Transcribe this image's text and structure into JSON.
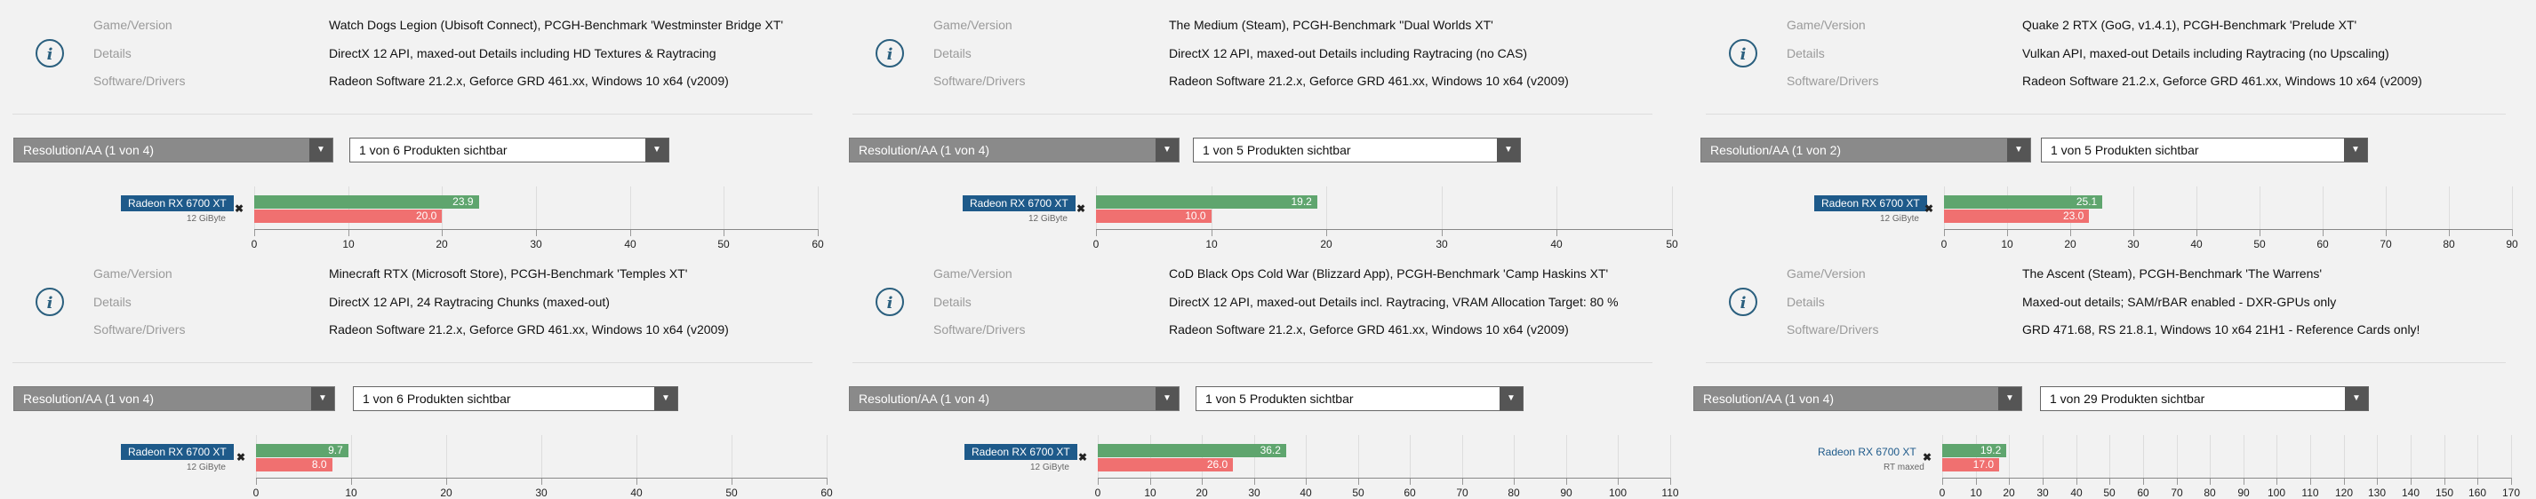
{
  "colors": {
    "avg": "#5fa56e",
    "low": "#f07070",
    "badge": "#1e5a8a",
    "icon": "#2a5f7e"
  },
  "labels": {
    "game": "Game/Version",
    "details": "Details",
    "software": "Software/Drivers"
  },
  "icons": {
    "info": "info-icon",
    "remove": "close-icon",
    "dropdown": "chevron-down-icon"
  },
  "panels": [
    {
      "game": "Watch Dogs Legion (Ubisoft Connect), PCGH-Benchmark 'Westminster Bridge XT'",
      "details": "DirectX 12 API, maxed-out Details including HD Textures & Raytracing",
      "software": "Radeon Software 21.2.x, Geforce GRD 461.xx, Windows 10 x64 (v2009)",
      "resolution": "Resolution/AA (1 von 4)",
      "products": "1 von 6 Produkten sichtbar",
      "gpu": "Radeon RX 6700 XT",
      "gpu_sub": "12 GiByte",
      "badge_style": "box",
      "chart_data": {
        "type": "bar",
        "categories": [
          "Radeon RX 6700 XT"
        ],
        "series": [
          {
            "values": [
              23.9
            ]
          },
          {
            "values": [
              20.0
            ]
          }
        ],
        "xlim": [
          0,
          60
        ],
        "ticks": [
          0,
          10,
          20,
          30,
          40,
          50,
          60
        ]
      },
      "bar_labels": [
        "23.9",
        "20.0"
      ],
      "tick_labels": [
        "0",
        "10",
        "20",
        "30",
        "40",
        "50",
        "60"
      ]
    },
    {
      "game": "The Medium (Steam), PCGH-Benchmark ''Dual Worlds XT'",
      "details": "DirectX 12 API, maxed-out Details including Raytracing (no CAS)",
      "software": "Radeon Software 21.2.x, Geforce GRD 461.xx, Windows 10 x64 (v2009)",
      "resolution": "Resolution/AA (1 von 4)",
      "products": "1 von 5 Produkten sichtbar",
      "gpu": "Radeon RX 6700 XT",
      "gpu_sub": "12 GiByte",
      "badge_style": "box",
      "chart_data": {
        "type": "bar",
        "categories": [
          "Radeon RX 6700 XT"
        ],
        "series": [
          {
            "values": [
              19.2
            ]
          },
          {
            "values": [
              10.0
            ]
          }
        ],
        "xlim": [
          0,
          50
        ],
        "ticks": [
          0,
          10,
          20,
          30,
          40,
          50
        ]
      },
      "bar_labels": [
        "19.2",
        "10.0"
      ],
      "tick_labels": [
        "0",
        "10",
        "20",
        "30",
        "40",
        "50"
      ]
    },
    {
      "game": "Quake 2 RTX (GoG, v1.4.1), PCGH-Benchmark 'Prelude XT'",
      "details": "Vulkan API, maxed-out Details including Raytracing (no Upscaling)",
      "software": "Radeon Software 21.2.x, Geforce GRD 461.xx, Windows 10 x64 (v2009)",
      "resolution": "Resolution/AA (1 von 2)",
      "products": "1 von 5 Produkten sichtbar",
      "gpu": "Radeon RX 6700 XT",
      "gpu_sub": "12 GiByte",
      "badge_style": "box",
      "chart_data": {
        "type": "bar",
        "categories": [
          "Radeon RX 6700 XT"
        ],
        "series": [
          {
            "values": [
              25.1
            ]
          },
          {
            "values": [
              23.0
            ]
          }
        ],
        "xlim": [
          0,
          90
        ],
        "ticks": [
          0,
          10,
          20,
          30,
          40,
          50,
          60,
          70,
          80,
          90
        ]
      },
      "bar_labels": [
        "25.1",
        "23.0"
      ],
      "tick_labels": [
        "0",
        "10",
        "20",
        "30",
        "40",
        "50",
        "60",
        "70",
        "80",
        "90"
      ]
    },
    {
      "game": "Minecraft RTX (Microsoft Store), PCGH-Benchmark 'Temples XT'",
      "details": "DirectX 12 API, 24 Raytracing Chunks (maxed-out)",
      "software": "Radeon Software 21.2.x, Geforce GRD 461.xx, Windows 10 x64 (v2009)",
      "resolution": "Resolution/AA (1 von 4)",
      "products": "1 von 6 Produkten sichtbar",
      "gpu": "Radeon RX 6700 XT",
      "gpu_sub": "12 GiByte",
      "badge_style": "box",
      "chart_data": {
        "type": "bar",
        "categories": [
          "Radeon RX 6700 XT"
        ],
        "series": [
          {
            "values": [
              9.7
            ]
          },
          {
            "values": [
              8.0
            ]
          }
        ],
        "xlim": [
          0,
          60
        ],
        "ticks": [
          0,
          10,
          20,
          30,
          40,
          50,
          60
        ]
      },
      "bar_labels": [
        "9.7",
        "8.0"
      ],
      "tick_labels": [
        "0",
        "10",
        "20",
        "30",
        "40",
        "50",
        "60"
      ]
    },
    {
      "game": "CoD Black Ops Cold War (Blizzard App), PCGH-Benchmark 'Camp Haskins XT'",
      "details": "DirectX 12 API, maxed-out Details incl. Raytracing, VRAM Allocation Target: 80 %",
      "software": "Radeon Software 21.2.x, Geforce GRD 461.xx, Windows 10 x64 (v2009)",
      "resolution": "Resolution/AA (1 von 4)",
      "products": "1 von 5 Produkten sichtbar",
      "gpu": "Radeon RX 6700 XT",
      "gpu_sub": "12 GiByte",
      "badge_style": "box",
      "chart_data": {
        "type": "bar",
        "categories": [
          "Radeon RX 6700 XT"
        ],
        "series": [
          {
            "values": [
              36.2
            ]
          },
          {
            "values": [
              26.0
            ]
          }
        ],
        "xlim": [
          0,
          110
        ],
        "ticks": [
          0,
          10,
          20,
          30,
          40,
          50,
          60,
          70,
          80,
          90,
          100,
          110
        ]
      },
      "bar_labels": [
        "36.2",
        "26.0"
      ],
      "tick_labels": [
        "0",
        "10",
        "20",
        "30",
        "40",
        "50",
        "60",
        "70",
        "80",
        "90",
        "100",
        "110"
      ]
    },
    {
      "game": "The Ascent (Steam), PCGH-Benchmark 'The Warrens'",
      "details": "Maxed-out details; SAM/rBAR enabled - DXR-GPUs only",
      "software": "GRD 471.68, RS 21.8.1, Windows 10 x64 21H1 - Reference Cards only!",
      "resolution": "Resolution/AA (1 von 4)",
      "products": "1 von 29 Produkten sichtbar",
      "gpu": "Radeon RX 6700 XT",
      "gpu_sub": "RT maxed",
      "badge_style": "plain",
      "chart_data": {
        "type": "bar",
        "categories": [
          "Radeon RX 6700 XT"
        ],
        "series": [
          {
            "values": [
              19.2
            ]
          },
          {
            "values": [
              17.0
            ]
          }
        ],
        "xlim": [
          0,
          170
        ],
        "ticks": [
          0,
          10,
          20,
          30,
          40,
          50,
          60,
          70,
          80,
          90,
          100,
          110,
          120,
          130,
          140,
          150,
          160,
          170
        ]
      },
      "bar_labels": [
        "19.2",
        "17.0"
      ],
      "tick_labels": [
        "0",
        "10",
        "20",
        "30",
        "40",
        "50",
        "60",
        "70",
        "80",
        "90",
        "100",
        "110",
        "120",
        "130",
        "140",
        "150",
        "160",
        "170"
      ]
    }
  ]
}
